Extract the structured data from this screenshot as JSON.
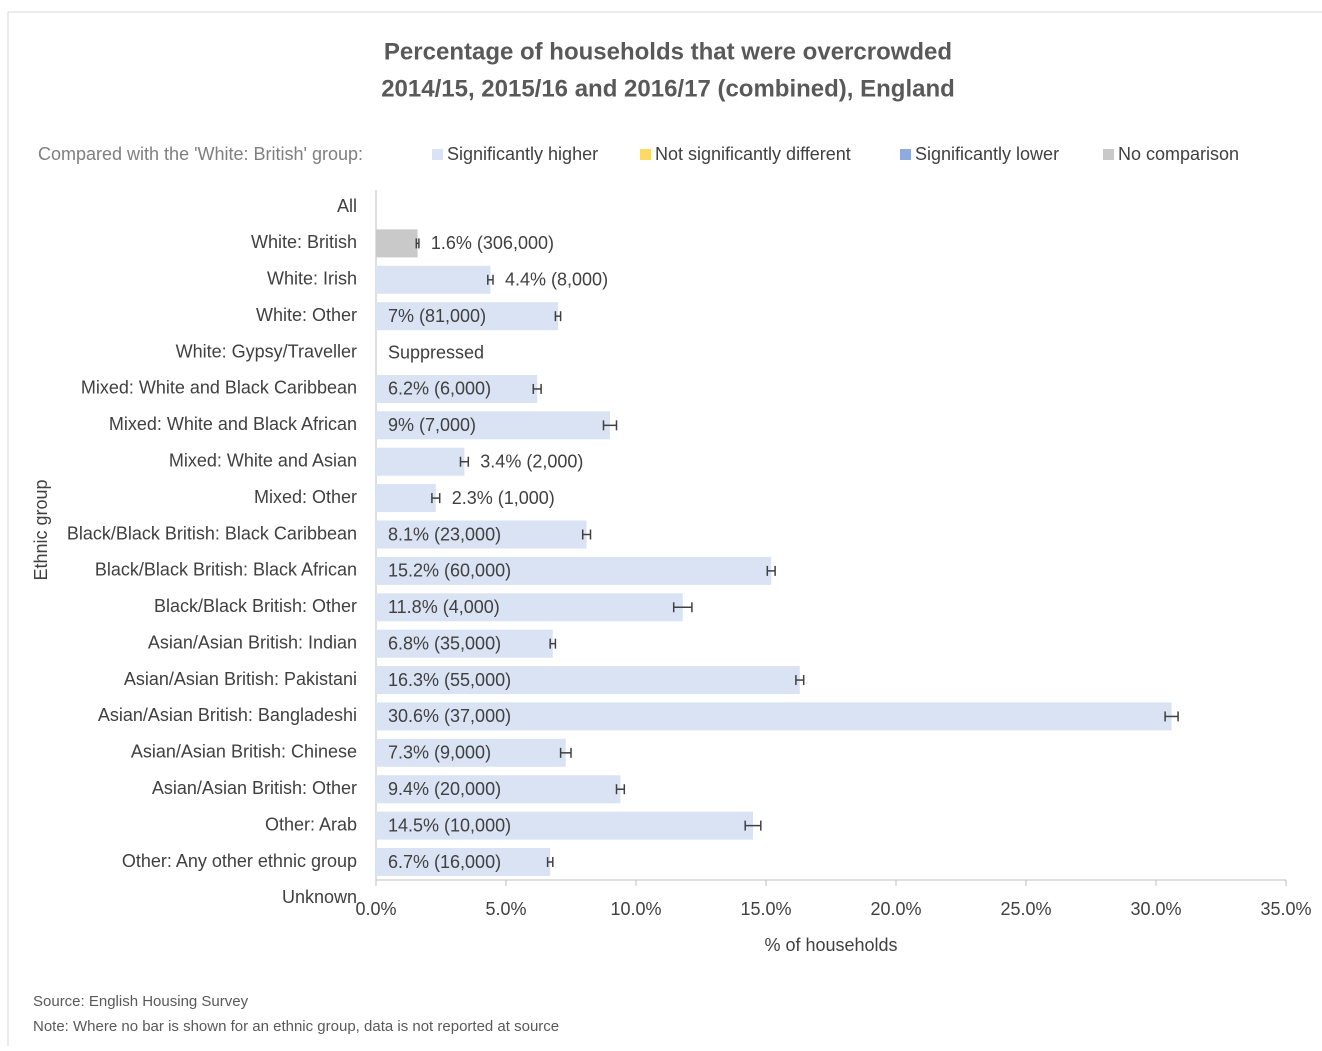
{
  "chart_data": {
    "type": "bar",
    "orientation": "horizontal",
    "title": "Percentage of households that were overcrowded",
    "subtitle": "2014/15, 2015/16 and 2016/17 (combined), England",
    "legend_title": "Compared with the 'White: British' group:",
    "legend": [
      {
        "name": "Significantly higher",
        "color": "#dae3f3"
      },
      {
        "name": "Not significantly different",
        "color": "#ffd966"
      },
      {
        "name": "Significantly lower",
        "color": "#8faadc"
      },
      {
        "name": "No comparison",
        "color": "#c9c9c9"
      }
    ],
    "categories": [
      "All",
      "White: British",
      "White: Irish",
      "White: Other",
      "White: Gypsy/Traveller",
      "Mixed: White and Black Caribbean",
      "Mixed: White and Black African",
      "Mixed: White and Asian",
      "Mixed: Other",
      "Black/Black British: Black Caribbean",
      "Black/Black British: Black African",
      "Black/Black British: Other",
      "Asian/Asian British: Indian",
      "Asian/Asian British: Pakistani",
      "Asian/Asian British: Bangladeshi",
      "Asian/Asian British: Chinese",
      "Asian/Asian British: Other",
      "Other: Arab",
      "Other: Any other ethnic group",
      "Unknown"
    ],
    "values": [
      null,
      1.6,
      4.4,
      7,
      null,
      6.2,
      9,
      3.4,
      2.3,
      8.1,
      15.2,
      11.8,
      6.8,
      16.3,
      30.6,
      7.3,
      9.4,
      14.5,
      6.7,
      null
    ],
    "errors": [
      null,
      0.05,
      0.1,
      0.1,
      null,
      0.15,
      0.25,
      0.15,
      0.15,
      0.15,
      0.15,
      0.35,
      0.1,
      0.15,
      0.25,
      0.2,
      0.15,
      0.3,
      0.1,
      null
    ],
    "value_labels": [
      null,
      "1.6% (306,000)",
      "4.4% (8,000)",
      "7% (81,000)",
      "Suppressed",
      "6.2% (6,000)",
      "9% (7,000)",
      "3.4% (2,000)",
      "2.3% (1,000)",
      "8.1% (23,000)",
      "15.2% (60,000)",
      "11.8% (4,000)",
      "6.8% (35,000)",
      "16.3% (55,000)",
      "30.6% (37,000)",
      "7.3% (9,000)",
      "9.4% (20,000)",
      "14.5% (10,000)",
      "6.7% (16,000)",
      null
    ],
    "bar_colors": [
      null,
      "#c9c9c9",
      "#dae3f3",
      "#dae3f3",
      null,
      "#dae3f3",
      "#dae3f3",
      "#dae3f3",
      "#dae3f3",
      "#dae3f3",
      "#dae3f3",
      "#dae3f3",
      "#dae3f3",
      "#dae3f3",
      "#dae3f3",
      "#dae3f3",
      "#dae3f3",
      "#dae3f3",
      "#dae3f3",
      null
    ],
    "xlim": [
      0,
      35
    ],
    "xticks": [
      {
        "value": 0,
        "label": "0.0%"
      },
      {
        "value": 5,
        "label": "5.0%"
      },
      {
        "value": 10,
        "label": "10.0%"
      },
      {
        "value": 15,
        "label": "15.0%"
      },
      {
        "value": 20,
        "label": "20.0%"
      },
      {
        "value": 25,
        "label": "25.0%"
      },
      {
        "value": 30,
        "label": "30.0%"
      },
      {
        "value": 35,
        "label": "35.0%"
      }
    ],
    "xlabel": "% of households",
    "ylabel": "Ethnic group",
    "source": "Source: English Housing Survey",
    "note": "Note: Where no bar is shown for an ethnic group, data is not reported at source"
  }
}
